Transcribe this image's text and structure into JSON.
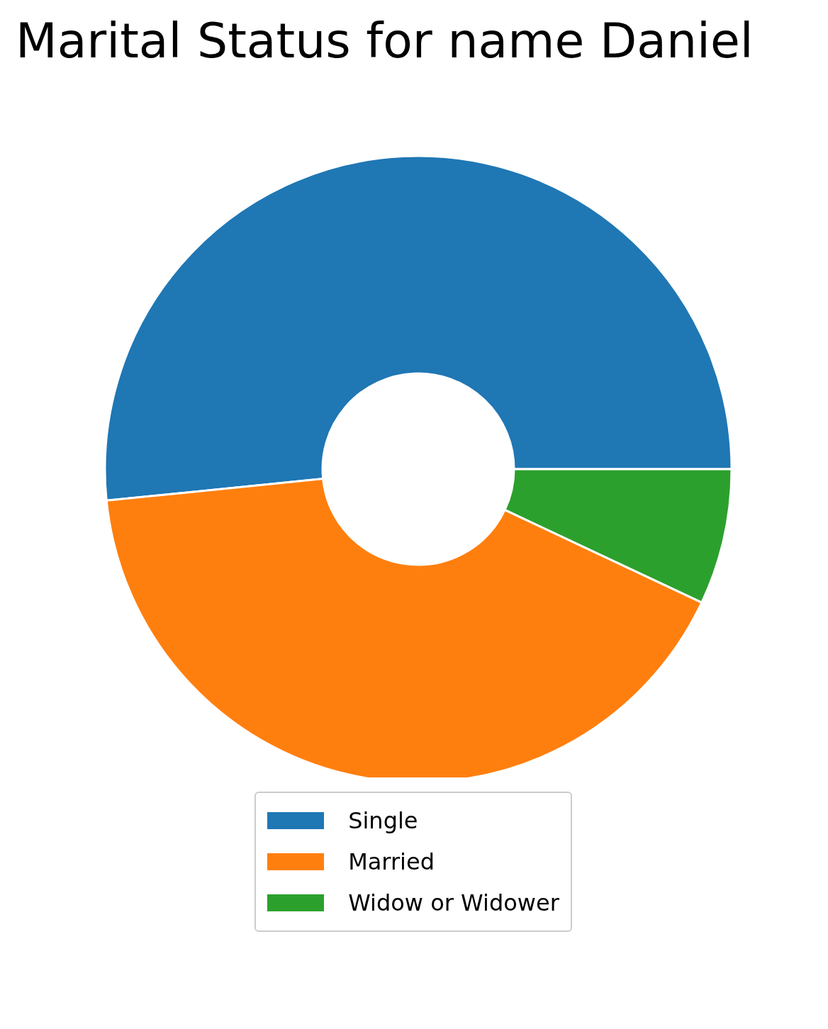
{
  "chart_data": {
    "type": "donut",
    "title": "Marital Status for name Daniel",
    "categories": [
      "Single",
      "Married",
      "Widow or Widower"
    ],
    "values": [
      51.6,
      41.4,
      7.0
    ],
    "colors": [
      "#1f77b4",
      "#ff7f0e",
      "#2ca02c"
    ],
    "legend": "bottom"
  }
}
